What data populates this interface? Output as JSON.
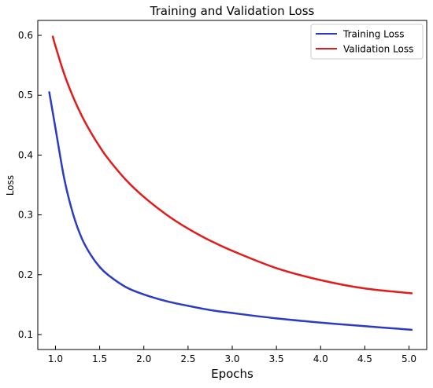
{
  "chart_data": {
    "type": "line",
    "title": "Training and Validation Loss",
    "xlabel": "Epochs",
    "ylabel": "Loss",
    "xlim": [
      0.8,
      5.2
    ],
    "ylim": [
      0.075,
      0.625
    ],
    "xticks": [
      1.0,
      1.5,
      2.0,
      2.5,
      3.0,
      3.5,
      4.0,
      4.5,
      5.0
    ],
    "xtick_labels": [
      "1.0",
      "1.5",
      "2.0",
      "2.5",
      "3.0",
      "3.5",
      "4.0",
      "4.5",
      "5.0"
    ],
    "yticks": [
      0.1,
      0.2,
      0.3,
      0.4,
      0.5,
      0.6
    ],
    "ytick_labels": [
      "0.1",
      "0.2",
      "0.3",
      "0.4",
      "0.5",
      "0.6"
    ],
    "grid": false,
    "legend_position": "top-right",
    "series": [
      {
        "name": "Training Loss",
        "color": "#2b3bc2",
        "x": [
          0.93,
          1.0,
          1.1,
          1.2,
          1.3,
          1.4,
          1.5,
          1.6,
          1.8,
          2.0,
          2.25,
          2.5,
          2.75,
          3.0,
          3.5,
          4.0,
          4.5,
          5.03
        ],
        "y": [
          0.505,
          0.445,
          0.36,
          0.301,
          0.26,
          0.233,
          0.213,
          0.199,
          0.179,
          0.167,
          0.156,
          0.148,
          0.141,
          0.136,
          0.127,
          0.12,
          0.114,
          0.108
        ]
      },
      {
        "name": "Validation Loss",
        "color": "#e01c1c",
        "x": [
          0.97,
          1.0,
          1.1,
          1.2,
          1.3,
          1.4,
          1.5,
          1.6,
          1.8,
          2.0,
          2.25,
          2.5,
          2.75,
          3.0,
          3.5,
          4.0,
          4.5,
          5.03
        ],
        "y": [
          0.598,
          0.582,
          0.535,
          0.497,
          0.465,
          0.438,
          0.414,
          0.393,
          0.358,
          0.33,
          0.301,
          0.277,
          0.257,
          0.24,
          0.211,
          0.191,
          0.177,
          0.169
        ]
      }
    ]
  }
}
